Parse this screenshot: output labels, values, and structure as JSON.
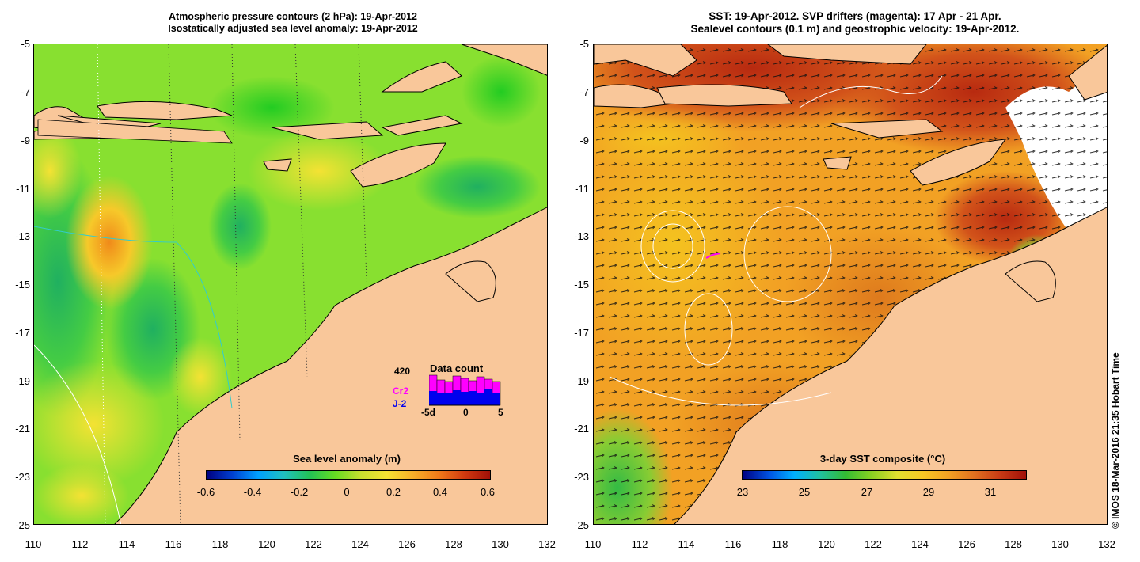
{
  "left_panel": {
    "title_line1": "Atmospheric pressure contours (2 hPa): 19-Apr-2012",
    "title_line2": "Isostatically adjusted sea level anomaly: 19-Apr-2012",
    "colorbar_label": "Sea level anomaly (m)",
    "colorbar_ticks": [
      "-0.6",
      "-0.4",
      "-0.2",
      "0",
      "0.2",
      "0.4",
      "0.6"
    ],
    "inset": {
      "count_value": "420",
      "title": "Data count",
      "satellite_1": "Cr2",
      "satellite_2": "J-2",
      "axis_ticks": [
        "-5d",
        "0",
        "5"
      ],
      "colors": {
        "cr2": "#ff00ff",
        "j2": "#0000ee"
      }
    }
  },
  "right_panel": {
    "title_line1": "SST: 19-Apr-2012. SVP drifters (magenta): 17 Apr - 21 Apr.",
    "title_line2": "Sealevel contours (0.1 m) and geostrophic velocity: 19-Apr-2012.",
    "colorbar_label": "3-day SST composite (°C)",
    "colorbar_ticks": [
      "23",
      "25",
      "27",
      "29",
      "31"
    ]
  },
  "axes": {
    "lat_labels": [
      "-5",
      "-7",
      "-9",
      "-11",
      "-13",
      "-15",
      "-17",
      "-19",
      "-21",
      "-23",
      "-25"
    ],
    "lon_labels": [
      "110",
      "112",
      "114",
      "116",
      "118",
      "120",
      "122",
      "124",
      "126",
      "128",
      "130",
      "132"
    ]
  },
  "credit": "© IMOS 18-Mar-2016 21:35 Hobart Time",
  "colors": {
    "land": "#f9c79a",
    "sst_dominant": "#f5a623",
    "sla_dominant": "#66dd22"
  }
}
